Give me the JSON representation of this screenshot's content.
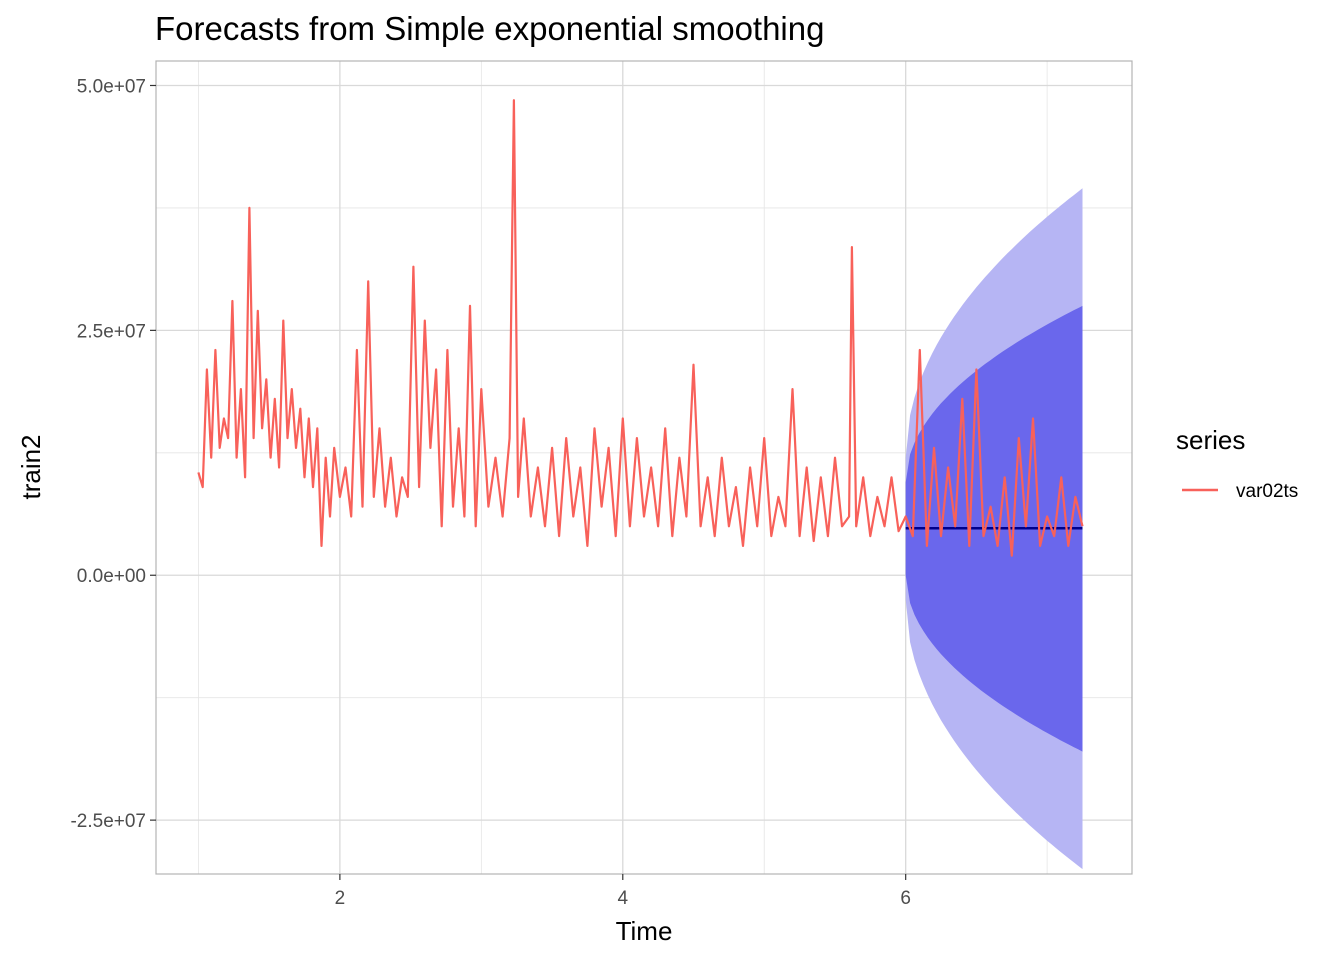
{
  "chart_data": {
    "type": "line",
    "title": "Forecasts from Simple exponential smoothing",
    "xlabel": "Time",
    "ylabel": "train2",
    "xlim": [
      0.7,
      7.6
    ],
    "ylim": [
      -30500000,
      52500000
    ],
    "x_ticks": [
      2,
      4,
      6
    ],
    "x_tick_labels": [
      "2",
      "4",
      "6"
    ],
    "y_ticks": [
      -25000000,
      0,
      25000000,
      50000000
    ],
    "y_tick_labels": [
      "-2.5e+07",
      "0.0e+00",
      "2.5e+07",
      "5.0e+07"
    ],
    "grid": true,
    "legend": {
      "title": "series",
      "position": "right",
      "entries": [
        "var02ts"
      ]
    },
    "colors": {
      "series": "#f8615a",
      "forecast_line": "#00008b",
      "band_80": "#6a67ec",
      "band_95": "#b6b5f4",
      "grid": "#e5e5e5",
      "panel_border": "#b3b3b3"
    },
    "series": [
      {
        "name": "var02ts",
        "x": [
          1.0,
          1.03,
          1.06,
          1.09,
          1.12,
          1.15,
          1.18,
          1.21,
          1.24,
          1.27,
          1.3,
          1.33,
          1.36,
          1.39,
          1.42,
          1.45,
          1.48,
          1.51,
          1.54,
          1.57,
          1.6,
          1.63,
          1.66,
          1.69,
          1.72,
          1.75,
          1.78,
          1.81,
          1.84,
          1.87,
          1.9,
          1.93,
          1.96,
          2.0,
          2.04,
          2.08,
          2.12,
          2.16,
          2.2,
          2.24,
          2.28,
          2.32,
          2.36,
          2.4,
          2.44,
          2.48,
          2.52,
          2.56,
          2.6,
          2.64,
          2.68,
          2.72,
          2.76,
          2.8,
          2.84,
          2.88,
          2.92,
          2.96,
          3.0,
          3.05,
          3.1,
          3.15,
          3.2,
          3.23,
          3.26,
          3.3,
          3.35,
          3.4,
          3.45,
          3.5,
          3.55,
          3.6,
          3.65,
          3.7,
          3.75,
          3.8,
          3.85,
          3.9,
          3.95,
          4.0,
          4.05,
          4.1,
          4.15,
          4.2,
          4.25,
          4.3,
          4.35,
          4.4,
          4.45,
          4.5,
          4.55,
          4.6,
          4.65,
          4.7,
          4.75,
          4.8,
          4.85,
          4.9,
          4.95,
          5.0,
          5.05,
          5.1,
          5.15,
          5.2,
          5.25,
          5.3,
          5.35,
          5.4,
          5.45,
          5.5,
          5.55,
          5.6,
          5.62,
          5.65,
          5.7,
          5.75,
          5.8,
          5.85,
          5.9,
          5.95,
          6.0,
          6.05,
          6.1,
          6.15,
          6.2,
          6.25,
          6.3,
          6.35,
          6.4,
          6.45,
          6.5,
          6.55,
          6.6,
          6.65,
          6.7,
          6.75,
          6.8,
          6.85,
          6.9,
          6.95,
          7.0,
          7.05,
          7.1,
          7.15,
          7.2,
          7.25
        ],
        "values": [
          10500000,
          9000000,
          21000000,
          12000000,
          23000000,
          13000000,
          16000000,
          14000000,
          28000000,
          12000000,
          19000000,
          10000000,
          37500000,
          14000000,
          27000000,
          15000000,
          20000000,
          12000000,
          18000000,
          11000000,
          26000000,
          14000000,
          19000000,
          13000000,
          17000000,
          10000000,
          16000000,
          9000000,
          15000000,
          3000000,
          12000000,
          6000000,
          13000000,
          8000000,
          11000000,
          6000000,
          23000000,
          7000000,
          30000000,
          8000000,
          15000000,
          7000000,
          12000000,
          6000000,
          10000000,
          8000000,
          31500000,
          9000000,
          26000000,
          13000000,
          21000000,
          5000000,
          23000000,
          7000000,
          15000000,
          6000000,
          27500000,
          5000000,
          19000000,
          7000000,
          12000000,
          6000000,
          14000000,
          48500000,
          8000000,
          16000000,
          6000000,
          11000000,
          5000000,
          13000000,
          4000000,
          14000000,
          6000000,
          11000000,
          3000000,
          15000000,
          7000000,
          13000000,
          4000000,
          16000000,
          5000000,
          14000000,
          6000000,
          11000000,
          5000000,
          15000000,
          4000000,
          12000000,
          6000000,
          21500000,
          5000000,
          10000000,
          4000000,
          12000000,
          5000000,
          9000000,
          3000000,
          11000000,
          5000000,
          14000000,
          4000000,
          8000000,
          5000000,
          19000000,
          4000000,
          11000000,
          3500000,
          10000000,
          4000000,
          12000000,
          5000000,
          6000000,
          33500000,
          5000000,
          10000000,
          4000000,
          8000000,
          5000000,
          10000000,
          4500000,
          6000000,
          4000000,
          23000000,
          3000000,
          13000000,
          4000000,
          11000000,
          5000000,
          18000000,
          3000000,
          21000000,
          4000000,
          7000000,
          3000000,
          10000000,
          2000000,
          14000000,
          5000000,
          16000000,
          3000000,
          6000000,
          4000000,
          10000000,
          3000000,
          8000000,
          5000000
        ]
      }
    ],
    "forecast": {
      "x": [
        6.0,
        7.25
      ],
      "point": 4800000,
      "lo80": [
        0,
        -18000000
      ],
      "hi80": [
        9500000,
        27500000
      ],
      "lo95": [
        -2500000,
        -30000000
      ],
      "hi95": [
        12000000,
        39500000
      ]
    }
  }
}
